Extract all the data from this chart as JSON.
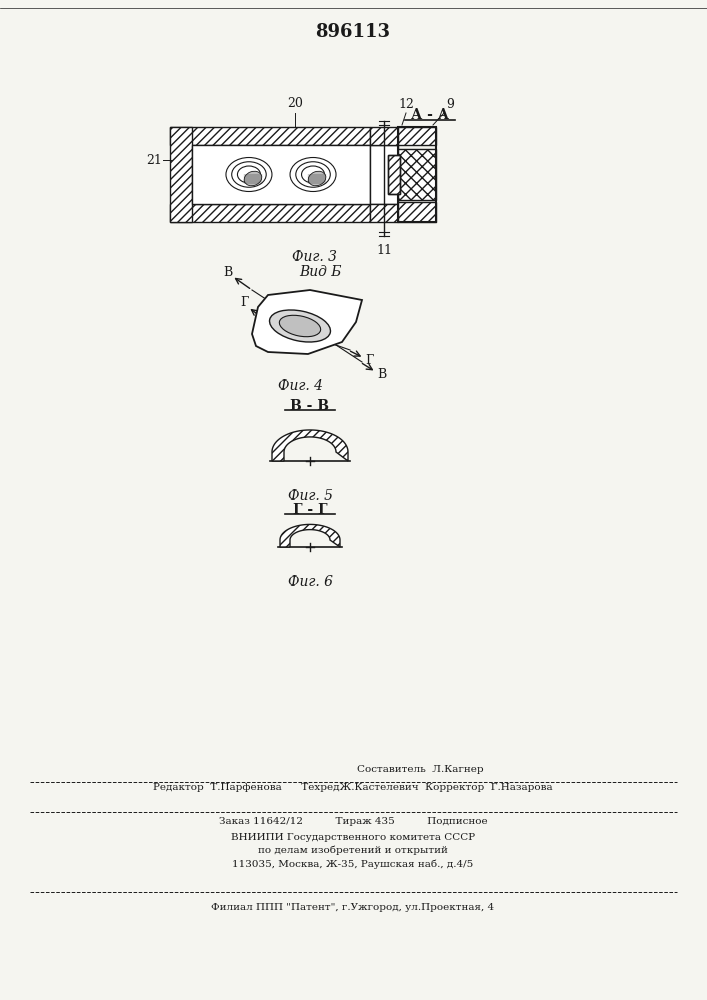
{
  "patent_number": "896113",
  "background_color": "#f5f5f0",
  "line_color": "#1a1a1a",
  "fig3_label": "Фиг. 3",
  "fig4_label": "Фиг. 4",
  "fig5_label": "Фиг. 5",
  "fig6_label": "Фиг. 6",
  "section_AA": "А - А",
  "section_BB": "В - В",
  "section_GG": "Г - Г",
  "view_B": "Вид Б",
  "label_20": "20",
  "label_21": "21",
  "label_11": "11",
  "label_12": "12",
  "label_9": "9",
  "footer_line1": "Составитель  Л.Кагнер",
  "footer_line2": "Редактор  Т.Парфенова      ТехредЖ.Кастелевич  Корректор  Г.Назарова",
  "footer_line3": "Заказ 11642/12          Тираж 435          Подписное",
  "footer_line4": "ВНИИПИ Государственного комитета СССР",
  "footer_line5": "по делам изобретений и открытий",
  "footer_line6": "113035, Москва, Ж-35, Раушская наб., д.4/5",
  "footer_line7": "Филиал ППП \"Патент\", г.Ужгород, ул.Проектная, 4"
}
